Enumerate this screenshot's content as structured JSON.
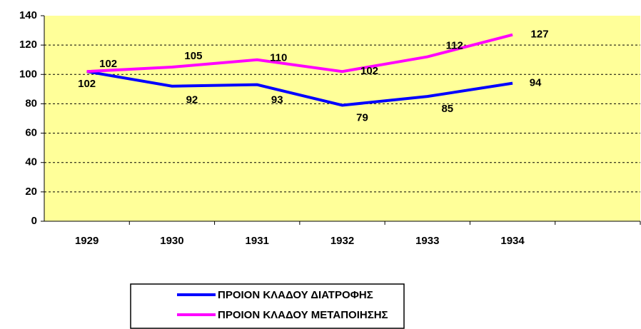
{
  "chart_data": {
    "type": "line",
    "categories": [
      "1929",
      "1930",
      "1931",
      "1932",
      "1933",
      "1934",
      null
    ],
    "series": [
      {
        "name": "ΠΡΟΙΟΝ ΚΛΑΔΟΥ ΔΙΑΤΡΟΦΗΣ",
        "color": "#0000ff",
        "values": [
          102,
          92,
          93,
          79,
          85,
          94,
          null
        ]
      },
      {
        "name": "ΠΡΟΙΟΝ ΚΛΑΔΟΥ ΜΕΤΑΠΟΙΗΣΗΣ",
        "color": "#ff00ff",
        "values": [
          102,
          105,
          110,
          102,
          112,
          127,
          null
        ]
      }
    ],
    "ylim": [
      0,
      140
    ],
    "yticks": [
      0,
      20,
      40,
      60,
      80,
      100,
      120,
      140
    ],
    "grid": true,
    "plot_background": "#ffff99"
  }
}
